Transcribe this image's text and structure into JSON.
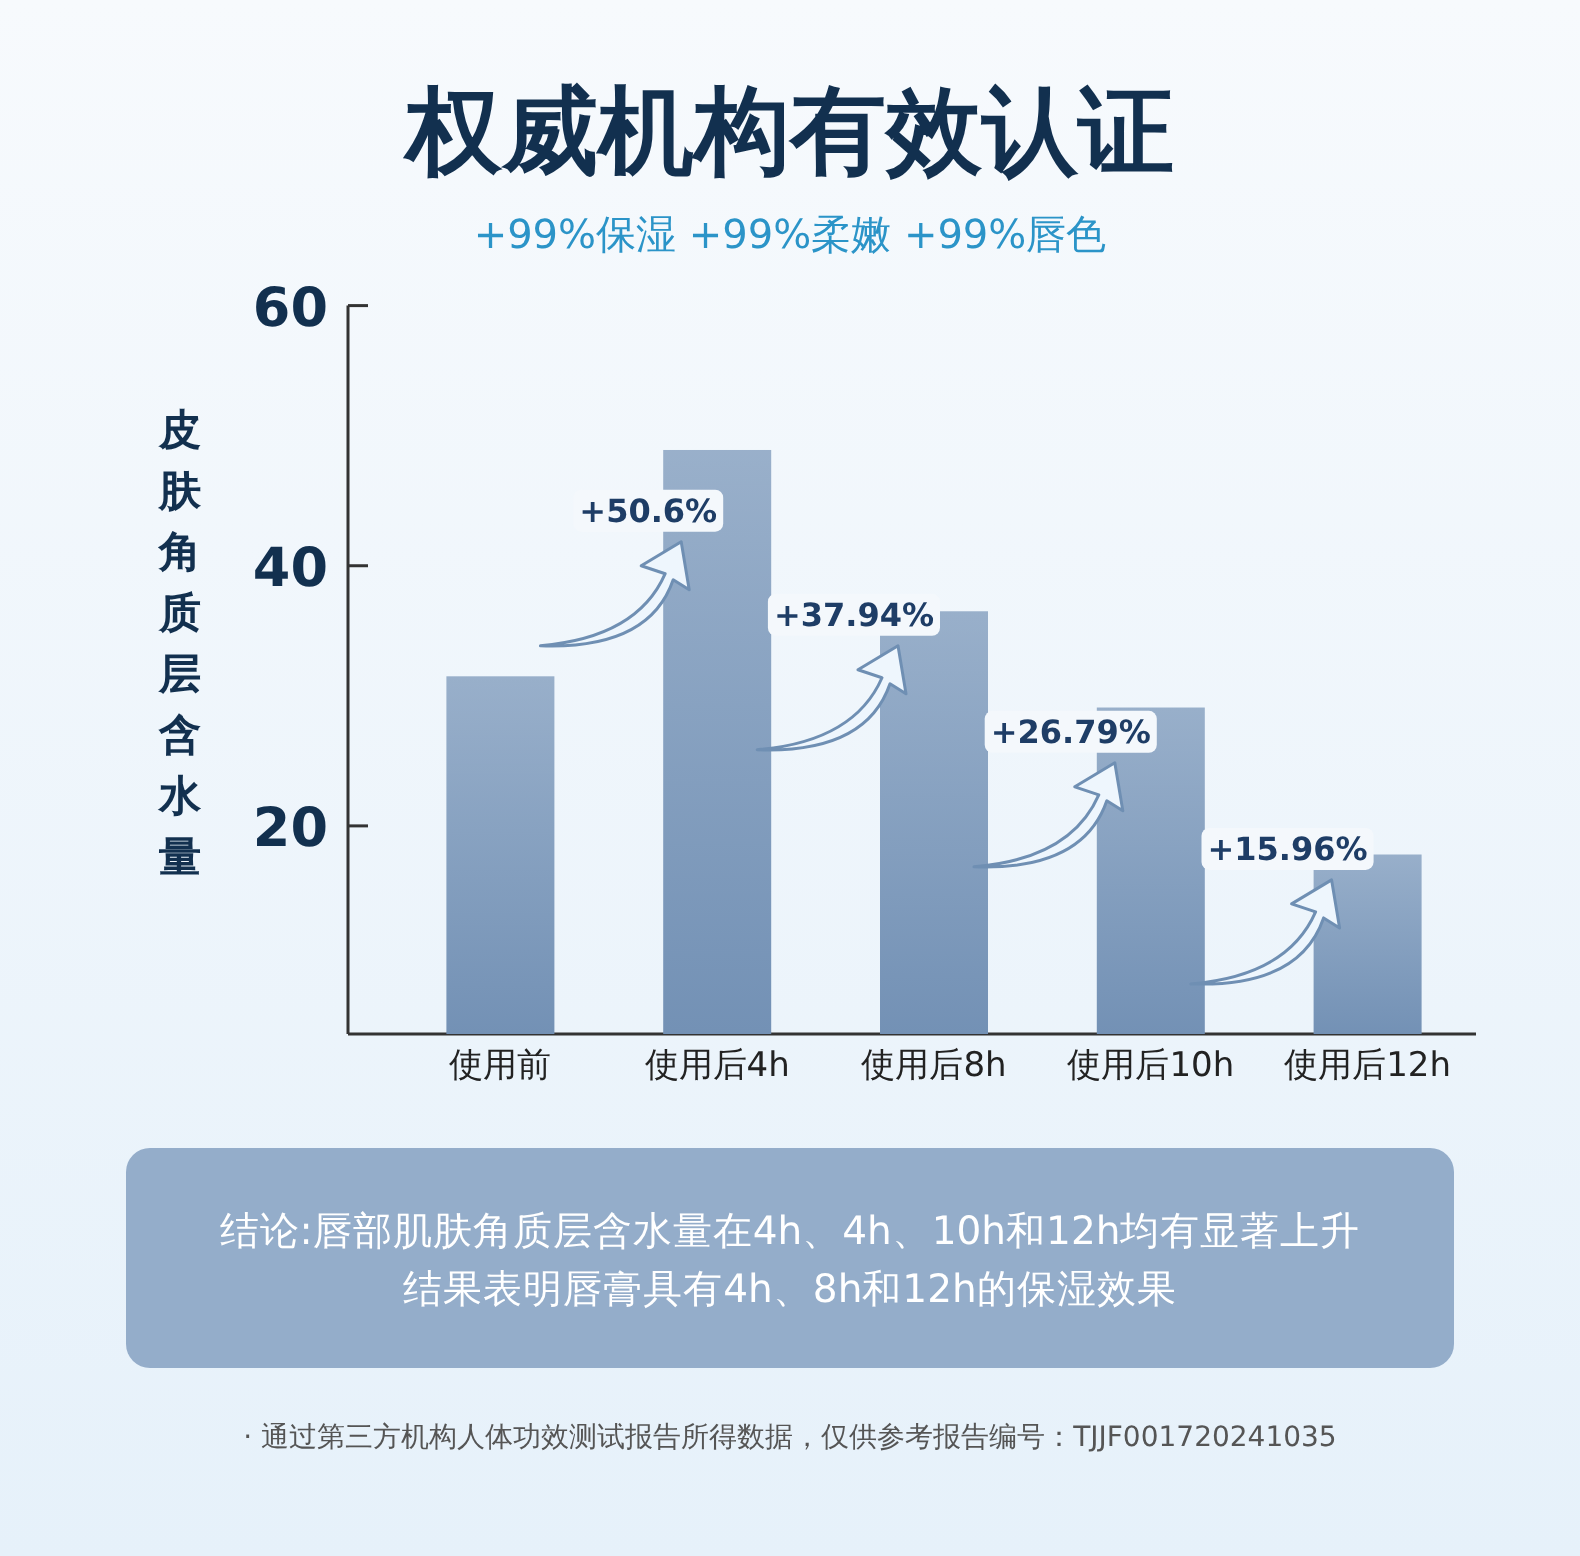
{
  "chart_data": {
    "type": "bar",
    "title": "权威机构有效认证",
    "subtitle": "+99%保湿  +99%柔嫩  +99%唇色",
    "ylabel": "皮肤角质层含水量",
    "categories": [
      "使用前",
      "使用后4h",
      "使用后8h",
      "使用后10h",
      "使用后12h"
    ],
    "values": [
      31.5,
      48.9,
      36.5,
      29.1,
      17.8
    ],
    "color": "#7391b5",
    "ylim": [
      4,
      60
    ],
    "yticks": [
      20,
      40,
      60
    ],
    "grid": false,
    "annotations": [
      "+50.6%",
      "+37.94%",
      "+26.79%",
      "+15.96%",
      "结论:唇部肌肤角质层含水量在4h、4h、10h和12h均有显著上升",
      "结果表明唇膏具有4h、8h和12h的保湿效果",
      "· 通过第三方机构人体功效测试报告所得数据，仅供参考报告编号：TJJF001720241035"
    ]
  }
}
